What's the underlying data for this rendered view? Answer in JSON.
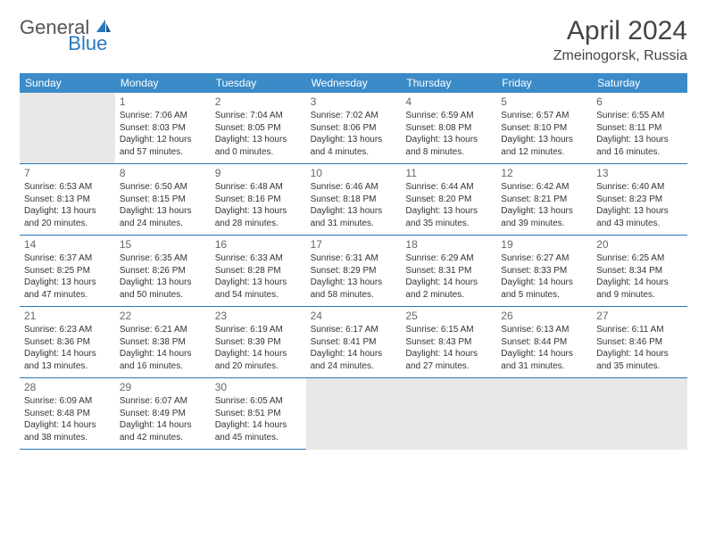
{
  "logo": {
    "text1": "General",
    "text2": "Blue"
  },
  "title": "April 2024",
  "location": "Zmeinogorsk, Russia",
  "colors": {
    "header_bg": "#3b8bc9",
    "header_text": "#ffffff",
    "border": "#2878bd",
    "shaded": "#e8e8e8",
    "text": "#333333",
    "daynum": "#666666"
  },
  "weekdays": [
    "Sunday",
    "Monday",
    "Tuesday",
    "Wednesday",
    "Thursday",
    "Friday",
    "Saturday"
  ],
  "leading_blanks": 1,
  "days": [
    {
      "n": 1,
      "sr": "7:06 AM",
      "ss": "8:03 PM",
      "dl": "12 hours and 57 minutes."
    },
    {
      "n": 2,
      "sr": "7:04 AM",
      "ss": "8:05 PM",
      "dl": "13 hours and 0 minutes."
    },
    {
      "n": 3,
      "sr": "7:02 AM",
      "ss": "8:06 PM",
      "dl": "13 hours and 4 minutes."
    },
    {
      "n": 4,
      "sr": "6:59 AM",
      "ss": "8:08 PM",
      "dl": "13 hours and 8 minutes."
    },
    {
      "n": 5,
      "sr": "6:57 AM",
      "ss": "8:10 PM",
      "dl": "13 hours and 12 minutes."
    },
    {
      "n": 6,
      "sr": "6:55 AM",
      "ss": "8:11 PM",
      "dl": "13 hours and 16 minutes."
    },
    {
      "n": 7,
      "sr": "6:53 AM",
      "ss": "8:13 PM",
      "dl": "13 hours and 20 minutes."
    },
    {
      "n": 8,
      "sr": "6:50 AM",
      "ss": "8:15 PM",
      "dl": "13 hours and 24 minutes."
    },
    {
      "n": 9,
      "sr": "6:48 AM",
      "ss": "8:16 PM",
      "dl": "13 hours and 28 minutes."
    },
    {
      "n": 10,
      "sr": "6:46 AM",
      "ss": "8:18 PM",
      "dl": "13 hours and 31 minutes."
    },
    {
      "n": 11,
      "sr": "6:44 AM",
      "ss": "8:20 PM",
      "dl": "13 hours and 35 minutes."
    },
    {
      "n": 12,
      "sr": "6:42 AM",
      "ss": "8:21 PM",
      "dl": "13 hours and 39 minutes."
    },
    {
      "n": 13,
      "sr": "6:40 AM",
      "ss": "8:23 PM",
      "dl": "13 hours and 43 minutes."
    },
    {
      "n": 14,
      "sr": "6:37 AM",
      "ss": "8:25 PM",
      "dl": "13 hours and 47 minutes."
    },
    {
      "n": 15,
      "sr": "6:35 AM",
      "ss": "8:26 PM",
      "dl": "13 hours and 50 minutes."
    },
    {
      "n": 16,
      "sr": "6:33 AM",
      "ss": "8:28 PM",
      "dl": "13 hours and 54 minutes."
    },
    {
      "n": 17,
      "sr": "6:31 AM",
      "ss": "8:29 PM",
      "dl": "13 hours and 58 minutes."
    },
    {
      "n": 18,
      "sr": "6:29 AM",
      "ss": "8:31 PM",
      "dl": "14 hours and 2 minutes."
    },
    {
      "n": 19,
      "sr": "6:27 AM",
      "ss": "8:33 PM",
      "dl": "14 hours and 5 minutes."
    },
    {
      "n": 20,
      "sr": "6:25 AM",
      "ss": "8:34 PM",
      "dl": "14 hours and 9 minutes."
    },
    {
      "n": 21,
      "sr": "6:23 AM",
      "ss": "8:36 PM",
      "dl": "14 hours and 13 minutes."
    },
    {
      "n": 22,
      "sr": "6:21 AM",
      "ss": "8:38 PM",
      "dl": "14 hours and 16 minutes."
    },
    {
      "n": 23,
      "sr": "6:19 AM",
      "ss": "8:39 PM",
      "dl": "14 hours and 20 minutes."
    },
    {
      "n": 24,
      "sr": "6:17 AM",
      "ss": "8:41 PM",
      "dl": "14 hours and 24 minutes."
    },
    {
      "n": 25,
      "sr": "6:15 AM",
      "ss": "8:43 PM",
      "dl": "14 hours and 27 minutes."
    },
    {
      "n": 26,
      "sr": "6:13 AM",
      "ss": "8:44 PM",
      "dl": "14 hours and 31 minutes."
    },
    {
      "n": 27,
      "sr": "6:11 AM",
      "ss": "8:46 PM",
      "dl": "14 hours and 35 minutes."
    },
    {
      "n": 28,
      "sr": "6:09 AM",
      "ss": "8:48 PM",
      "dl": "14 hours and 38 minutes."
    },
    {
      "n": 29,
      "sr": "6:07 AM",
      "ss": "8:49 PM",
      "dl": "14 hours and 42 minutes."
    },
    {
      "n": 30,
      "sr": "6:05 AM",
      "ss": "8:51 PM",
      "dl": "14 hours and 45 minutes."
    }
  ],
  "labels": {
    "sunrise": "Sunrise:",
    "sunset": "Sunset:",
    "daylight": "Daylight:"
  }
}
